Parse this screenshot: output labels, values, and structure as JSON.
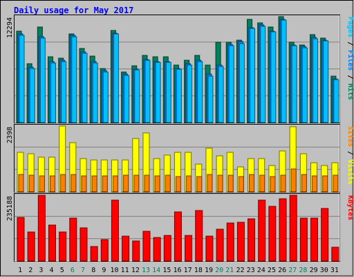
{
  "chart_data": {
    "type": "bar",
    "title": "Daily usage for May 2017",
    "categories": [
      "1",
      "2",
      "3",
      "4",
      "5",
      "6",
      "7",
      "8",
      "9",
      "10",
      "11",
      "12",
      "13",
      "14",
      "15",
      "16",
      "17",
      "18",
      "19",
      "20",
      "21",
      "22",
      "23",
      "24",
      "25",
      "26",
      "27",
      "28",
      "29",
      "30",
      "31"
    ],
    "weekend_days": [
      "6",
      "7",
      "13",
      "14",
      "20",
      "21",
      "27",
      "28"
    ],
    "grid": true,
    "colors": {
      "hits": "#00805c",
      "files": "#0080ff",
      "pages": "#00c0ff",
      "visits": "#ffff00",
      "sites": "#ff8000",
      "kbytes": "#ff0000",
      "weekend_label": "#00805c",
      "weekday_label": "#000000",
      "background": "#c0c0c0",
      "plot_background": "#c0c0c0",
      "title": "#0000ff"
    },
    "panels": [
      {
        "id": "hits-files-pages",
        "ymax_label": "12294",
        "ylim": [
          0,
          12294
        ],
        "side_labels": [
          {
            "text": "Pages",
            "color": "#00c0ff"
          },
          {
            "text": " / ",
            "color": "#000000"
          },
          {
            "text": "Files",
            "color": "#0080ff"
          },
          {
            "text": " / ",
            "color": "#000000"
          },
          {
            "text": "Hits",
            "color": "#00805c"
          }
        ],
        "series": [
          {
            "name": "Hits",
            "color": "#00805c",
            "values": [
              10600,
              6800,
              11100,
              7600,
              7500,
              10300,
              8600,
              7700,
              6300,
              10700,
              5900,
              6600,
              7800,
              7600,
              7600,
              6700,
              7200,
              7800,
              6700,
              9300,
              9300,
              9600,
              12000,
              11600,
              11100,
              12300,
              9300,
              9000,
              10200,
              9800,
              5400
            ]
          },
          {
            "name": "Files",
            "color": "#0080ff",
            "values": [
              10300,
              6400,
              10000,
              7100,
              7200,
              10100,
              8200,
              7100,
              6000,
              10400,
              5600,
              6200,
              7300,
              7100,
              7100,
              6300,
              6800,
              7200,
              5600,
              6700,
              9100,
              9400,
              11000,
              11300,
              10600,
              12000,
              9000,
              8800,
              9900,
              9600,
              5100
            ]
          },
          {
            "name": "Pages",
            "color": "#00c0ff",
            "values": [
              10100,
              6300,
              9800,
              6900,
              7100,
              10000,
              8000,
              6900,
              5900,
              10300,
              5500,
              6100,
              7200,
              7000,
              7000,
              6200,
              6700,
              7100,
              5400,
              6500,
              8900,
              9200,
              10900,
              11200,
              10500,
              11900,
              8900,
              8700,
              9700,
              9500,
              5000
            ]
          }
        ]
      },
      {
        "id": "visits-sites",
        "ymax_label": "2398",
        "ylim": [
          0,
          2398
        ],
        "side_labels": [
          {
            "text": "Sites",
            "color": "#ff8000"
          },
          {
            "text": " / ",
            "color": "#000000"
          },
          {
            "text": "Visits",
            "color": "#ffff00"
          }
        ],
        "series": [
          {
            "name": "Visits",
            "color": "#ffff00",
            "values": [
              1450,
              1400,
              1250,
              1250,
              2390,
              1800,
              1200,
              1150,
              1150,
              1150,
              1150,
              1950,
              2150,
              1200,
              1350,
              1450,
              1450,
              1000,
              1600,
              1300,
              1450,
              900,
              1200,
              1200,
              950,
              1500,
              2370,
              1400,
              1050,
              950,
              1050
            ]
          },
          {
            "name": "Sites",
            "color": "#ff8000",
            "values": [
              640,
              610,
              590,
              590,
              630,
              620,
              570,
              570,
              590,
              570,
              600,
              610,
              610,
              570,
              600,
              560,
              580,
              550,
              630,
              600,
              600,
              560,
              630,
              600,
              560,
              610,
              840,
              620,
              580,
              590,
              600
            ]
          }
        ]
      },
      {
        "id": "kbytes",
        "ymax_label": "235188",
        "ylim": [
          0,
          235188
        ],
        "side_labels": [
          {
            "text": "KBytes",
            "color": "#ff0000"
          }
        ],
        "series": [
          {
            "name": "KBytes",
            "color": "#ff0000",
            "values": [
              156000,
              103000,
              235000,
              128000,
              103000,
              154000,
              120000,
              53000,
              76000,
              218000,
              89000,
              73000,
              106000,
              84000,
              91000,
              177000,
              91000,
              181000,
              89000,
              114000,
              137000,
              139000,
              151000,
              219000,
              196000,
              224000,
              235000,
              154000,
              154000,
              188000,
              50000
            ]
          }
        ]
      }
    ]
  }
}
